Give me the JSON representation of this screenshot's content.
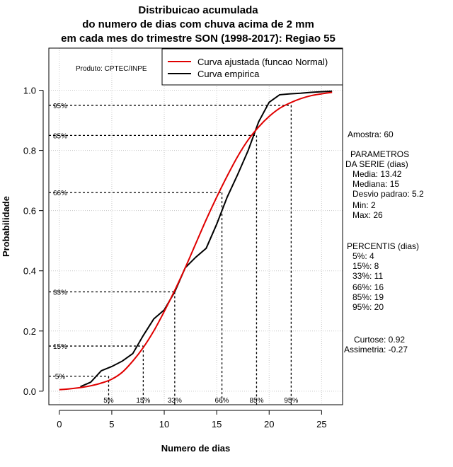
{
  "chart_data": {
    "type": "line",
    "title_lines": [
      "Distribuicao acumulada",
      "do numero de dias com chuva acima de 2 mm",
      "em cada mes do trimestre SON (1998-2017): Regiao 55"
    ],
    "xlabel": "Numero de dias",
    "ylabel": "Probabilidade",
    "xlim": [
      -1,
      27
    ],
    "ylim": [
      -0.045,
      1.14
    ],
    "x_ticks": [
      0,
      5,
      10,
      15,
      20,
      25
    ],
    "x_tick_labels": [
      "0",
      "5",
      "10",
      "15",
      "20",
      "25"
    ],
    "y_ticks": [
      0.0,
      0.2,
      0.4,
      0.6,
      0.8,
      1.0
    ],
    "y_tick_labels": [
      "0.0",
      "0.2",
      "0.4",
      "0.6",
      "0.8",
      "1.0"
    ],
    "grid": true,
    "credit": "Produto: CPTEC/INPE",
    "legend": {
      "placement": "top-right",
      "entries": [
        {
          "label": "Curva ajustada (funcao Normal)",
          "color": "#e00000"
        },
        {
          "label": "Curva empirica",
          "color": "#000000"
        }
      ]
    },
    "series": [
      {
        "name": "Curva ajustada (funcao Normal)",
        "color": "#e00000",
        "x": [
          0,
          1,
          2,
          3,
          4,
          5,
          6,
          7,
          8,
          9,
          10,
          11,
          12,
          13,
          14,
          15,
          16,
          17,
          18,
          19,
          20,
          21,
          22,
          23,
          24,
          25,
          26
        ],
        "y": [
          0.005,
          0.008,
          0.012,
          0.018,
          0.027,
          0.04,
          0.063,
          0.1,
          0.145,
          0.2,
          0.265,
          0.335,
          0.41,
          0.49,
          0.57,
          0.645,
          0.715,
          0.78,
          0.835,
          0.878,
          0.913,
          0.94,
          0.958,
          0.972,
          0.982,
          0.988,
          0.993
        ]
      },
      {
        "name": "Curva empirica",
        "color": "#000000",
        "x": [
          2,
          3,
          4,
          5,
          6,
          7,
          8,
          9,
          10,
          11,
          12,
          13,
          14,
          15,
          16,
          17,
          18,
          19,
          20,
          21,
          22,
          23,
          24,
          25,
          26
        ],
        "y": [
          0.015,
          0.03,
          0.068,
          0.082,
          0.1,
          0.125,
          0.185,
          0.24,
          0.27,
          0.33,
          0.41,
          0.445,
          0.475,
          0.555,
          0.645,
          0.72,
          0.8,
          0.895,
          0.96,
          0.985,
          0.988,
          0.99,
          0.993,
          0.995,
          0.997
        ]
      }
    ],
    "percentile_markers": [
      {
        "label": "5%",
        "x": 4.7,
        "y": 0.05
      },
      {
        "label": "15%",
        "x": 8,
        "y": 0.15
      },
      {
        "label": "33%",
        "x": 11,
        "y": 0.33
      },
      {
        "label": "66%",
        "x": 15.5,
        "y": 0.66
      },
      {
        "label": "85%",
        "x": 18.8,
        "y": 0.85
      },
      {
        "label": "95%",
        "x": 22.1,
        "y": 0.95
      }
    ]
  },
  "stats": {
    "sample": "Amostra: 60",
    "params_lines": [
      "PARAMETROS",
      "DA SERIE (dias)",
      "Media: 13.42",
      "Mediana: 15",
      "Desvio padrao: 5.2",
      "Min: 2",
      "Max: 26"
    ],
    "percentis_lines": [
      "PERCENTIS (dias)",
      "5%: 4",
      "15%: 8",
      "33%: 11",
      "66%: 16",
      "85%: 19",
      "95%: 20"
    ],
    "shape_lines": [
      "Curtose: 0.92",
      "Assimetria: -0.27"
    ]
  }
}
